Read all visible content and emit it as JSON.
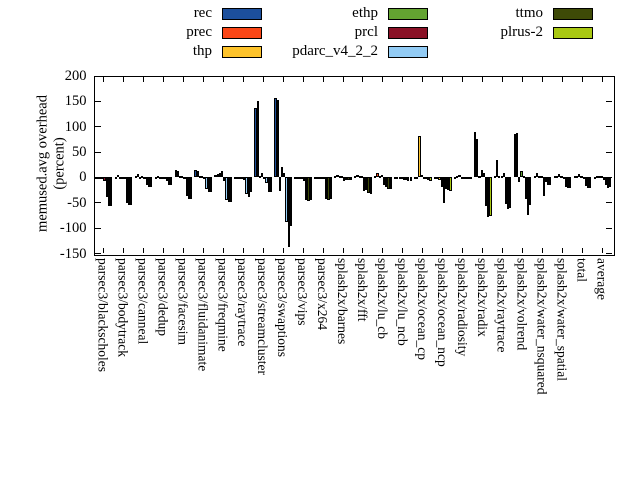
{
  "chart_data": {
    "type": "bar",
    "title": "",
    "ylabel_line1": "memused.avg overhead",
    "ylabel_line2": "(percent)",
    "ylim": [
      -150,
      200
    ],
    "yticks": [
      200,
      150,
      100,
      50,
      0,
      -50,
      -100,
      -150
    ],
    "grid": false,
    "legend_position": "top",
    "categories": [
      "parsec3/blackscholes",
      "parsec3/bodytrack",
      "parsec3/canneal",
      "parsec3/dedup",
      "parsec3/facesim",
      "parsec3/fluidanimate",
      "parsec3/freqmine",
      "parsec3/raytrace",
      "parsec3/streamcluster",
      "parsec3/swaptions",
      "parsec3/vips",
      "parsec3/x264",
      "splash2x/barnes",
      "splash2x/fft",
      "splash2x/lu_cb",
      "splash2x/lu_ncb",
      "splash2x/ocean_cp",
      "splash2x/ocean_ncp",
      "splash2x/radiosity",
      "splash2x/radix",
      "splash2x/raytrace",
      "splash2x/volrend",
      "splash2x/water_nsquared",
      "splash2x/water_spatial",
      "total",
      "average"
    ],
    "series": [
      {
        "name": "rec",
        "color": "#1c4f9c",
        "values": [
          -1,
          1,
          2,
          1,
          15,
          15,
          4,
          -1,
          136,
          156,
          -2,
          -1,
          2,
          2,
          3,
          -1,
          1,
          1,
          1,
          90,
          3,
          85,
          2,
          2,
          2,
          1
        ]
      },
      {
        "name": "prec",
        "color": "#fa4616",
        "values": [
          -1,
          4,
          7,
          2,
          13,
          13,
          6,
          -1,
          151,
          153,
          -2,
          -1,
          5,
          5,
          8,
          -1,
          1,
          1,
          2,
          75,
          35,
          87,
          8,
          3,
          3,
          2
        ]
      },
      {
        "name": "thp",
        "color": "#fdc32b",
        "values": [
          -2,
          1,
          1,
          1,
          2,
          2,
          8,
          -1,
          3,
          -26,
          -3,
          -2,
          2,
          2,
          2,
          -2,
          81,
          -5,
          5,
          2,
          2,
          -10,
          3,
          6,
          6,
          3
        ]
      },
      {
        "name": "ethp",
        "color": "#63a331",
        "values": [
          -2,
          1,
          2,
          1,
          2,
          3,
          12,
          -1,
          8,
          20,
          -3,
          -2,
          3,
          3,
          5,
          -2,
          4,
          -18,
          1,
          15,
          3,
          12,
          2,
          2,
          2,
          2
        ]
      },
      {
        "name": "prcl",
        "color": "#8a1126",
        "values": [
          -8,
          -2,
          -3,
          -3,
          -3,
          -4,
          -8,
          -6,
          -2,
          9,
          -8,
          -4,
          -8,
          -26,
          -15,
          -5,
          -2,
          -50,
          -2,
          9,
          9,
          3,
          -36,
          -4,
          -4,
          -6
        ]
      },
      {
        "name": "pdarc_v4_2_2",
        "color": "#93ccf5",
        "values": [
          -39,
          -50,
          -15,
          -8,
          -36,
          -22,
          -45,
          -32,
          -11,
          -88,
          -45,
          -42,
          -5,
          -25,
          -19,
          -6,
          -2,
          -22,
          -3,
          -57,
          -52,
          -42,
          -9,
          -18,
          -16,
          -14
        ]
      },
      {
        "name": "ttmo",
        "color": "#3e4a07",
        "values": [
          -56,
          -55,
          -18,
          -14,
          -42,
          -29,
          -48,
          -38,
          -29,
          -138,
          -46,
          -44,
          -6,
          -30,
          -22,
          -8,
          -6,
          -25,
          -4,
          -78,
          -62,
          -75,
          -14,
          -20,
          -20,
          -20
        ]
      },
      {
        "name": "plrus-2",
        "color": "#a9c812",
        "values": [
          -57,
          -55,
          -18,
          -14,
          -42,
          -28,
          -48,
          -28,
          -29,
          -95,
          -45,
          -43,
          -5,
          -33,
          -22,
          -8,
          -8,
          -27,
          -3,
          -77,
          -60,
          -55,
          -14,
          -20,
          -20,
          -19
        ]
      }
    ],
    "legend_columns": [
      [
        0,
        1,
        2
      ],
      [
        3,
        4,
        5
      ],
      [
        6,
        7
      ]
    ]
  }
}
